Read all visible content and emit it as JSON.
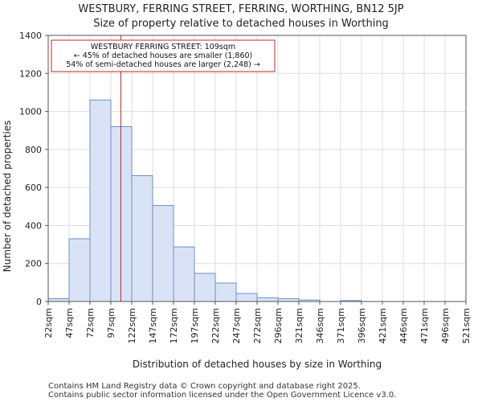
{
  "chart_data": {
    "type": "bar",
    "title": "WESTBURY, FERRING STREET, FERRING, WORTHING, BN12 5JP",
    "subtitle": "Size of property relative to detached houses in Worthing",
    "xlabel": "Distribution of detached houses by size in Worthing",
    "ylabel": "Number of detached properties",
    "bin_edges": [
      22,
      47,
      72,
      97,
      122,
      147,
      172,
      197,
      222,
      247,
      272,
      296,
      321,
      346,
      371,
      396,
      421,
      446,
      471,
      496,
      521
    ],
    "x_tick_labels": [
      "22sqm",
      "47sqm",
      "72sqm",
      "97sqm",
      "122sqm",
      "147sqm",
      "172sqm",
      "197sqm",
      "222sqm",
      "247sqm",
      "272sqm",
      "296sqm",
      "321sqm",
      "346sqm",
      "371sqm",
      "396sqm",
      "421sqm",
      "446sqm",
      "471sqm",
      "496sqm",
      "521sqm"
    ],
    "values": [
      15,
      330,
      1060,
      920,
      662,
      505,
      287,
      148,
      97,
      42,
      20,
      15,
      8,
      0,
      5,
      0,
      0,
      0,
      0,
      0
    ],
    "ylim": [
      0,
      1400
    ],
    "y_ticks": [
      0,
      200,
      400,
      600,
      800,
      1000,
      1200,
      1400
    ],
    "grid": true,
    "bar_color": "#dae3f5",
    "bar_edge_color": "#6b8fcb",
    "marker": {
      "value": 109,
      "color": "#c0272d",
      "annotation": [
        "WESTBURY FERRING STREET: 109sqm",
        "← 45% of detached houses are smaller (1,860)",
        "54% of semi-detached houses are larger (2,248) →"
      ]
    }
  },
  "footer": {
    "line1": "Contains HM Land Registry data © Crown copyright and database right 2025.",
    "line2": "Contains public sector information licensed under the Open Government Licence v3.0."
  }
}
